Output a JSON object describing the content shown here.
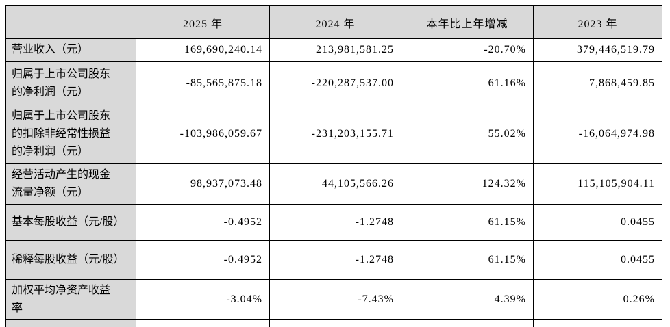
{
  "table": {
    "header": [
      "",
      "2025 年",
      "2024 年",
      "本年比上年增减",
      "2023 年"
    ],
    "rows": [
      {
        "label": "营业收入（元）",
        "values": [
          "169,690,240.14",
          "213,981,581.25",
          "-20.70%",
          "379,446,519.79"
        ]
      },
      {
        "label": "归属于上市公司股东的净利润（元）",
        "values": [
          "-85,565,875.18",
          "-220,287,537.00",
          "61.16%",
          "7,868,459.85"
        ]
      },
      {
        "label": "归属于上市公司股东的扣除非经常性损益的净利润（元）",
        "values": [
          "-103,986,059.67",
          "-231,203,155.71",
          "55.02%",
          "-16,064,974.98"
        ]
      },
      {
        "label": "经营活动产生的现金流量净额（元）",
        "values": [
          "98,937,073.48",
          "44,105,566.26",
          "124.32%",
          "115,105,904.11"
        ]
      },
      {
        "label": "基本每股收益（元/股）",
        "values": [
          "-0.4952",
          "-1.2748",
          "61.15%",
          "0.0455"
        ]
      },
      {
        "label": "稀释每股收益（元/股）",
        "values": [
          "-0.4952",
          "-1.2748",
          "61.15%",
          "0.0455"
        ]
      },
      {
        "label": "加权平均净资产收益率",
        "values": [
          "-3.04%",
          "-7.43%",
          "4.39%",
          "0.26%"
        ]
      }
    ],
    "colors": {
      "header_bg": "#d9d9d9",
      "label_bg": "#d9d9d9",
      "cell_bg": "#ffffff",
      "border": "#000000",
      "text": "#000000"
    }
  }
}
